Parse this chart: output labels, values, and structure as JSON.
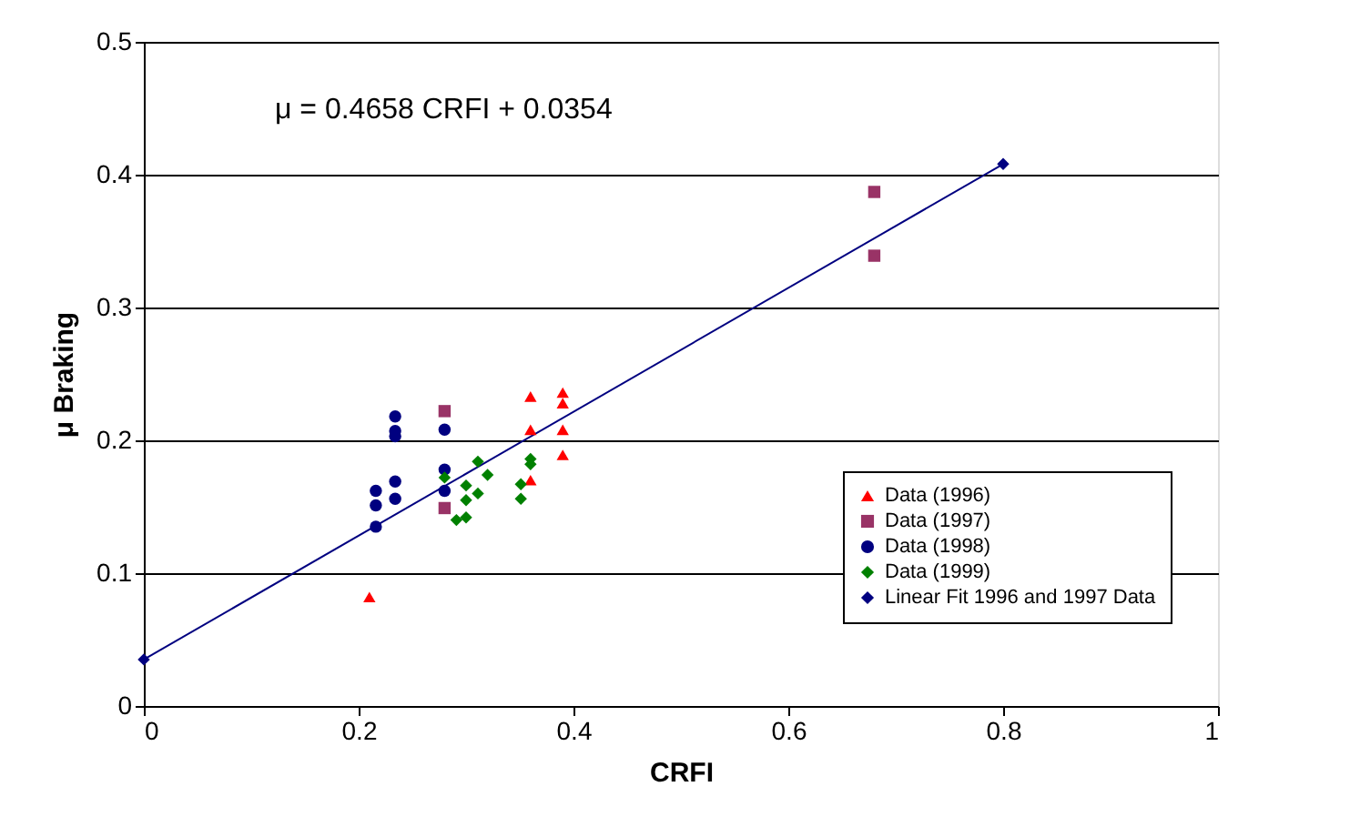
{
  "chart_data": {
    "type": "scatter",
    "xlabel": "CRFI",
    "ylabel": "μ Braking",
    "annotations": [
      "μ = 0.4658 CRFI + 0.0354"
    ],
    "xlim": [
      0,
      1
    ],
    "xticks": [
      0,
      0.2,
      0.4,
      0.6,
      0.8,
      1
    ],
    "ylim": [
      0,
      0.5
    ],
    "yticks": [
      0,
      0.1,
      0.2,
      0.3,
      0.4,
      0.5
    ],
    "grid": "y",
    "legend": "right",
    "series": [
      {
        "name": "Data (1996)",
        "color": "#ff0000",
        "marker": "triangle",
        "x": [
          0.21,
          0.36,
          0.39,
          0.39,
          0.36,
          0.39,
          0.39,
          0.36
        ],
        "values": [
          0.082,
          0.233,
          0.236,
          0.228,
          0.208,
          0.208,
          0.189,
          0.17
        ]
      },
      {
        "name": "Data (1997)",
        "color": "#993366",
        "marker": "square",
        "x": [
          0.28,
          0.28,
          0.68,
          0.68
        ],
        "values": [
          0.222,
          0.149,
          0.387,
          0.339
        ]
      },
      {
        "name": "Data (1998)",
        "color": "#000080",
        "marker": "circle",
        "x": [
          0.234,
          0.234,
          0.234,
          0.28,
          0.28,
          0.234,
          0.28,
          0.216,
          0.216,
          0.234,
          0.216
        ],
        "values": [
          0.218,
          0.207,
          0.203,
          0.208,
          0.178,
          0.169,
          0.162,
          0.162,
          0.151,
          0.156,
          0.135
        ]
      },
      {
        "name": "Data (1999)",
        "color": "#008000",
        "marker": "diamond",
        "x": [
          0.311,
          0.32,
          0.28,
          0.3,
          0.311,
          0.3,
          0.291,
          0.3,
          0.351,
          0.351,
          0.36,
          0.36
        ],
        "values": [
          0.184,
          0.174,
          0.172,
          0.166,
          0.16,
          0.155,
          0.14,
          0.142,
          0.167,
          0.156,
          0.186,
          0.182
        ]
      },
      {
        "name": "Linear Fit 1996 and 1997 Data",
        "type": "line",
        "color": "#000080",
        "marker": "diamond",
        "x": [
          0,
          0.8
        ],
        "values": [
          0.035,
          0.408
        ]
      }
    ]
  }
}
